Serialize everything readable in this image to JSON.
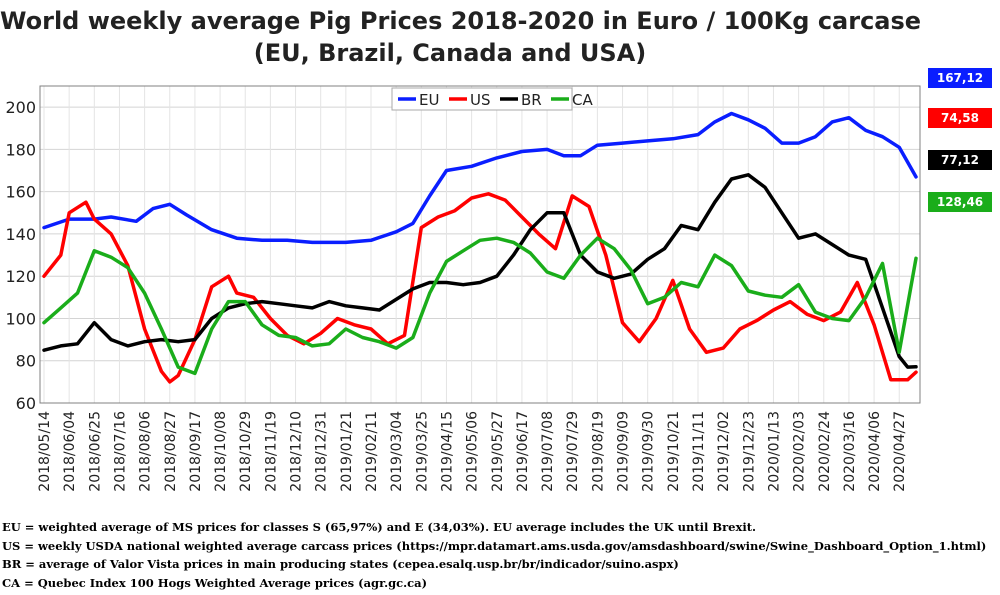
{
  "title_line1": "World weekly average Pig Prices 2018-2020 in Euro / 100Kg carcase",
  "title_line2": "(EU, Brazil, Canada and USA)",
  "badges": [
    {
      "value": "167,12",
      "color": "#0a1eff",
      "text_color": "#ffffff"
    },
    {
      "value": "74,58",
      "color": "#ff0000",
      "text_color": "#ffffff"
    },
    {
      "value": "77,12",
      "color": "#000000",
      "text_color": "#ffffff"
    },
    {
      "value": "128,46",
      "color": "#1aad1a",
      "text_color": "#ffffff"
    }
  ],
  "notes": [
    "EU = weighted average of MS prices for classes S (65,97%) and E (34,03%). EU average includes the UK until Brexit.",
    "US = weekly USDA national weighted average carcass prices (https://mpr.datamart.ams.usda.gov/amsdashboard/swine/Swine_Dashboard_Option_1.html)",
    "BR = average of Valor Vista prices in main producing states (cepea.esalq.usp.br/br/indicador/suino.aspx)",
    "CA = Quebec Index 100 Hogs Weighted Average prices (agr.gc.ca)"
  ],
  "chart_data": {
    "type": "line",
    "title": "World weekly average Pig Prices 2018-2020 in Euro / 100Kg carcase (EU, Brazil, Canada and USA)",
    "xlabel": "",
    "ylabel": "",
    "ylim": [
      60,
      210
    ],
    "yticks": [
      60,
      80,
      100,
      120,
      140,
      160,
      180,
      200
    ],
    "grid": true,
    "legend_position": "top-center",
    "x_start": "2018/05/14",
    "x_end": "2020/05/11",
    "xtick_labels": [
      "2018/05/14",
      "2018/06/04",
      "2018/06/25",
      "2018/07/16",
      "2018/08/06",
      "2018/08/27",
      "2018/09/17",
      "2018/10/08",
      "2018/10/29",
      "2018/11/19",
      "2018/12/10",
      "2018/12/31",
      "2019/01/21",
      "2019/02/11",
      "2019/03/04",
      "2019/03/25",
      "2019/04/15",
      "2019/05/06",
      "2019/05/27",
      "2019/06/17",
      "2019/07/08",
      "2019/07/29",
      "2019/08/19",
      "2019/09/09",
      "2019/09/30",
      "2019/10/21",
      "2019/11/11",
      "2019/12/02",
      "2019/12/23",
      "2020/01/13",
      "2020/02/03",
      "2020/02/24",
      "2020/03/16",
      "2020/04/06",
      "2020/04/27"
    ],
    "series": [
      {
        "name": "EU",
        "color": "#0a1eff",
        "points": [
          [
            "2018/05/14",
            143
          ],
          [
            "2018/06/04",
            147
          ],
          [
            "2018/06/25",
            147
          ],
          [
            "2018/07/09",
            148
          ],
          [
            "2018/07/30",
            146
          ],
          [
            "2018/08/13",
            152
          ],
          [
            "2018/08/27",
            154
          ],
          [
            "2018/09/10",
            149
          ],
          [
            "2018/10/01",
            142
          ],
          [
            "2018/10/22",
            138
          ],
          [
            "2018/11/12",
            137
          ],
          [
            "2018/12/03",
            137
          ],
          [
            "2018/12/24",
            136
          ],
          [
            "2019/01/21",
            136
          ],
          [
            "2019/02/11",
            137
          ],
          [
            "2019/03/04",
            141
          ],
          [
            "2019/03/18",
            145
          ],
          [
            "2019/04/01",
            158
          ],
          [
            "2019/04/15",
            170
          ],
          [
            "2019/05/06",
            172
          ],
          [
            "2019/05/27",
            176
          ],
          [
            "2019/06/17",
            179
          ],
          [
            "2019/07/08",
            180
          ],
          [
            "2019/07/22",
            177
          ],
          [
            "2019/08/05",
            177
          ],
          [
            "2019/08/19",
            182
          ],
          [
            "2019/09/09",
            183
          ],
          [
            "2019/09/30",
            184
          ],
          [
            "2019/10/21",
            185
          ],
          [
            "2019/11/11",
            187
          ],
          [
            "2019/11/25",
            193
          ],
          [
            "2019/12/09",
            197
          ],
          [
            "2019/12/23",
            194
          ],
          [
            "2020/01/06",
            190
          ],
          [
            "2020/01/20",
            183
          ],
          [
            "2020/02/03",
            183
          ],
          [
            "2020/02/17",
            186
          ],
          [
            "2020/03/02",
            193
          ],
          [
            "2020/03/16",
            195
          ],
          [
            "2020/03/30",
            189
          ],
          [
            "2020/04/13",
            186
          ],
          [
            "2020/04/27",
            181
          ],
          [
            "2020/05/11",
            167
          ]
        ]
      },
      {
        "name": "US",
        "color": "#ff0000",
        "points": [
          [
            "2018/05/14",
            120
          ],
          [
            "2018/05/28",
            130
          ],
          [
            "2018/06/04",
            150
          ],
          [
            "2018/06/18",
            155
          ],
          [
            "2018/06/25",
            147
          ],
          [
            "2018/07/09",
            140
          ],
          [
            "2018/07/23",
            125
          ],
          [
            "2018/08/06",
            95
          ],
          [
            "2018/08/20",
            75
          ],
          [
            "2018/08/27",
            70
          ],
          [
            "2018/09/03",
            73
          ],
          [
            "2018/09/17",
            90
          ],
          [
            "2018/10/01",
            115
          ],
          [
            "2018/10/15",
            120
          ],
          [
            "2018/10/22",
            112
          ],
          [
            "2018/11/05",
            110
          ],
          [
            "2018/11/19",
            100
          ],
          [
            "2018/12/03",
            92
          ],
          [
            "2018/12/17",
            88
          ],
          [
            "2018/12/31",
            93
          ],
          [
            "2019/01/14",
            100
          ],
          [
            "2019/01/28",
            97
          ],
          [
            "2019/02/11",
            95
          ],
          [
            "2019/02/25",
            88
          ],
          [
            "2019/03/11",
            92
          ],
          [
            "2019/03/25",
            143
          ],
          [
            "2019/04/08",
            148
          ],
          [
            "2019/04/22",
            151
          ],
          [
            "2019/05/06",
            157
          ],
          [
            "2019/05/20",
            159
          ],
          [
            "2019/06/03",
            156
          ],
          [
            "2019/06/17",
            148
          ],
          [
            "2019/07/01",
            140
          ],
          [
            "2019/07/15",
            133
          ],
          [
            "2019/07/29",
            158
          ],
          [
            "2019/08/12",
            153
          ],
          [
            "2019/08/26",
            130
          ],
          [
            "2019/09/09",
            98
          ],
          [
            "2019/09/23",
            89
          ],
          [
            "2019/10/07",
            100
          ],
          [
            "2019/10/21",
            118
          ],
          [
            "2019/11/04",
            95
          ],
          [
            "2019/11/18",
            84
          ],
          [
            "2019/12/02",
            86
          ],
          [
            "2019/12/16",
            95
          ],
          [
            "2019/12/30",
            99
          ],
          [
            "2020/01/13",
            104
          ],
          [
            "2020/01/27",
            108
          ],
          [
            "2020/02/10",
            102
          ],
          [
            "2020/02/24",
            99
          ],
          [
            "2020/03/09",
            103
          ],
          [
            "2020/03/23",
            117
          ],
          [
            "2020/04/06",
            97
          ],
          [
            "2020/04/20",
            71
          ],
          [
            "2020/05/04",
            71
          ],
          [
            "2020/05/11",
            74.58
          ]
        ]
      },
      {
        "name": "BR",
        "color": "#000000",
        "points": [
          [
            "2018/05/14",
            85
          ],
          [
            "2018/05/28",
            87
          ],
          [
            "2018/06/11",
            88
          ],
          [
            "2018/06/25",
            98
          ],
          [
            "2018/07/09",
            90
          ],
          [
            "2018/07/23",
            87
          ],
          [
            "2018/08/06",
            89
          ],
          [
            "2018/08/20",
            90
          ],
          [
            "2018/09/03",
            89
          ],
          [
            "2018/09/17",
            90
          ],
          [
            "2018/10/01",
            100
          ],
          [
            "2018/10/15",
            105
          ],
          [
            "2018/10/29",
            107
          ],
          [
            "2018/11/12",
            108
          ],
          [
            "2018/11/26",
            107
          ],
          [
            "2018/12/10",
            106
          ],
          [
            "2018/12/24",
            105
          ],
          [
            "2019/01/07",
            108
          ],
          [
            "2019/01/21",
            106
          ],
          [
            "2019/02/04",
            105
          ],
          [
            "2019/02/18",
            104
          ],
          [
            "2019/03/04",
            109
          ],
          [
            "2019/03/18",
            114
          ],
          [
            "2019/04/01",
            117
          ],
          [
            "2019/04/15",
            117
          ],
          [
            "2019/04/29",
            116
          ],
          [
            "2019/05/13",
            117
          ],
          [
            "2019/05/27",
            120
          ],
          [
            "2019/06/10",
            130
          ],
          [
            "2019/06/24",
            142
          ],
          [
            "2019/07/08",
            150
          ],
          [
            "2019/07/22",
            150
          ],
          [
            "2019/08/05",
            130
          ],
          [
            "2019/08/19",
            122
          ],
          [
            "2019/09/02",
            119
          ],
          [
            "2019/09/16",
            121
          ],
          [
            "2019/09/30",
            128
          ],
          [
            "2019/10/14",
            133
          ],
          [
            "2019/10/28",
            144
          ],
          [
            "2019/11/11",
            142
          ],
          [
            "2019/11/25",
            155
          ],
          [
            "2019/12/09",
            166
          ],
          [
            "2019/12/23",
            168
          ],
          [
            "2020/01/06",
            162
          ],
          [
            "2020/01/20",
            150
          ],
          [
            "2020/02/03",
            138
          ],
          [
            "2020/02/17",
            140
          ],
          [
            "2020/03/02",
            135
          ],
          [
            "2020/03/16",
            130
          ],
          [
            "2020/03/30",
            128
          ],
          [
            "2020/04/13",
            105
          ],
          [
            "2020/04/27",
            82
          ],
          [
            "2020/05/04",
            77
          ],
          [
            "2020/05/11",
            77.12
          ]
        ]
      },
      {
        "name": "CA",
        "color": "#1aad1a",
        "points": [
          [
            "2018/05/14",
            98
          ],
          [
            "2018/05/28",
            105
          ],
          [
            "2018/06/11",
            112
          ],
          [
            "2018/06/25",
            132
          ],
          [
            "2018/07/09",
            129
          ],
          [
            "2018/07/23",
            124
          ],
          [
            "2018/08/06",
            112
          ],
          [
            "2018/08/20",
            95
          ],
          [
            "2018/09/03",
            77
          ],
          [
            "2018/09/17",
            74
          ],
          [
            "2018/10/01",
            95
          ],
          [
            "2018/10/15",
            108
          ],
          [
            "2018/10/29",
            108
          ],
          [
            "2018/11/12",
            97
          ],
          [
            "2018/11/26",
            92
          ],
          [
            "2018/12/10",
            91
          ],
          [
            "2018/12/24",
            87
          ],
          [
            "2019/01/07",
            88
          ],
          [
            "2019/01/21",
            95
          ],
          [
            "2019/02/04",
            91
          ],
          [
            "2019/02/18",
            89
          ],
          [
            "2019/03/04",
            86
          ],
          [
            "2019/03/18",
            91
          ],
          [
            "2019/04/01",
            112
          ],
          [
            "2019/04/15",
            127
          ],
          [
            "2019/04/29",
            132
          ],
          [
            "2019/05/13",
            137
          ],
          [
            "2019/05/27",
            138
          ],
          [
            "2019/06/10",
            136
          ],
          [
            "2019/06/24",
            131
          ],
          [
            "2019/07/08",
            122
          ],
          [
            "2019/07/22",
            119
          ],
          [
            "2019/08/05",
            130
          ],
          [
            "2019/08/19",
            138
          ],
          [
            "2019/09/02",
            133
          ],
          [
            "2019/09/16",
            123
          ],
          [
            "2019/09/30",
            107
          ],
          [
            "2019/10/14",
            110
          ],
          [
            "2019/10/28",
            117
          ],
          [
            "2019/11/11",
            115
          ],
          [
            "2019/11/25",
            130
          ],
          [
            "2019/12/09",
            125
          ],
          [
            "2019/12/23",
            113
          ],
          [
            "2020/01/06",
            111
          ],
          [
            "2020/01/20",
            110
          ],
          [
            "2020/02/03",
            116
          ],
          [
            "2020/02/17",
            103
          ],
          [
            "2020/03/02",
            100
          ],
          [
            "2020/03/16",
            99
          ],
          [
            "2020/03/30",
            110
          ],
          [
            "2020/04/13",
            126
          ],
          [
            "2020/04/27",
            84
          ],
          [
            "2020/05/11",
            128.46
          ]
        ]
      }
    ]
  }
}
